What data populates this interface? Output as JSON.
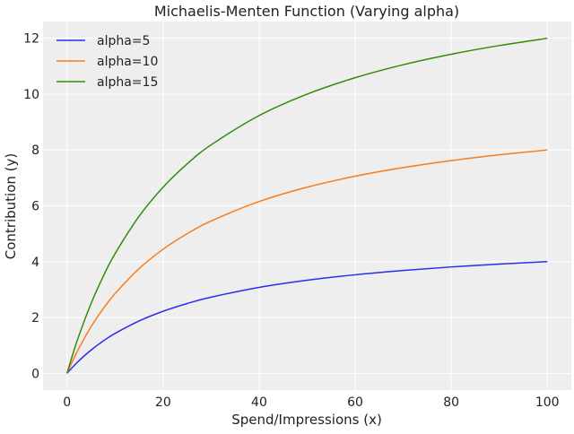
{
  "chart_data": {
    "type": "line",
    "title": "Michaelis-Menten Function (Varying alpha)",
    "xlabel": "Spend/Impressions (x)",
    "ylabel": "Contribution (y)",
    "xlim": [
      -5,
      105
    ],
    "ylim": [
      -0.6,
      12.6
    ],
    "xticks": [
      0,
      20,
      40,
      60,
      80,
      100
    ],
    "yticks": [
      0,
      2,
      4,
      6,
      8,
      10,
      12
    ],
    "grid": true,
    "legend_position": "top-left",
    "background": "#eeeeee",
    "x": [
      0,
      1,
      2.5,
      5,
      7.5,
      10,
      15,
      20,
      25,
      30,
      40,
      50,
      60,
      70,
      80,
      90,
      100
    ],
    "series": [
      {
        "name": "alpha=5",
        "color": "#2a2eec",
        "values": [
          0,
          0.192,
          0.455,
          0.833,
          1.154,
          1.429,
          1.875,
          2.222,
          2.5,
          2.727,
          3.077,
          3.333,
          3.529,
          3.684,
          3.81,
          3.913,
          4.0
        ]
      },
      {
        "name": "alpha=10",
        "color": "#fa7c17",
        "values": [
          0,
          0.385,
          0.909,
          1.667,
          2.308,
          2.857,
          3.75,
          4.444,
          5.0,
          5.455,
          6.154,
          6.667,
          7.059,
          7.368,
          7.619,
          7.826,
          8.0
        ]
      },
      {
        "name": "alpha=15",
        "color": "#328c06",
        "values": [
          0,
          0.577,
          1.364,
          2.5,
          3.462,
          4.286,
          5.625,
          6.667,
          7.5,
          8.182,
          9.231,
          10.0,
          10.588,
          11.053,
          11.429,
          11.739,
          12.0
        ]
      }
    ]
  }
}
